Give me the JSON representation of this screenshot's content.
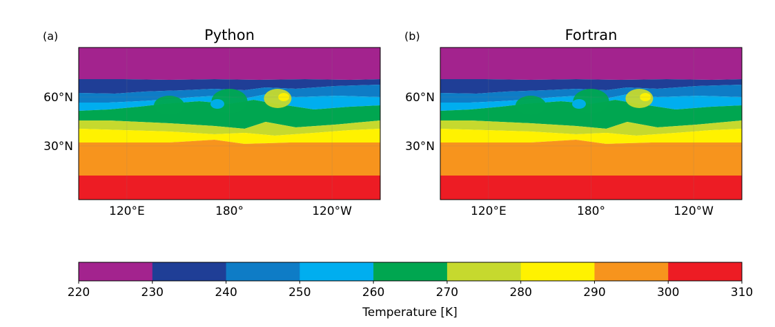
{
  "figure": {
    "panels": [
      {
        "letter": "(a)",
        "title": "Python"
      },
      {
        "letter": "(b)",
        "title": "Fortran"
      }
    ],
    "colorbar_label": "Temperature [K]"
  },
  "chart_data": [
    {
      "type": "heatmap",
      "title": "Python",
      "panel_label": "(a)",
      "xticks": [
        "120°E",
        "180°",
        "120°W"
      ],
      "yticks": [
        "60°N",
        "30°N"
      ],
      "grid": true,
      "contour_levels": [
        220,
        230,
        240,
        250,
        260,
        270,
        280,
        290,
        300,
        310
      ],
      "colorbar_label": "Temperature [K]"
    },
    {
      "type": "heatmap",
      "title": "Fortran",
      "panel_label": "(b)",
      "xticks": [
        "120°E",
        "180°",
        "120°W"
      ],
      "yticks": [
        "60°N",
        "30°N"
      ],
      "grid": true,
      "contour_levels": [
        220,
        230,
        240,
        250,
        260,
        270,
        280,
        290,
        300,
        310
      ],
      "colorbar_label": "Temperature [K]"
    }
  ],
  "colorbar": {
    "levels": [
      220,
      230,
      240,
      250,
      260,
      270,
      280,
      290,
      300,
      310
    ],
    "colors": [
      "#a3238e",
      "#1f3e96",
      "#0e7cc6",
      "#00aeef",
      "#00a650",
      "#c6d92e",
      "#fff200",
      "#f7941d",
      "#ed1c24"
    ],
    "label": "Temperature [K]"
  }
}
